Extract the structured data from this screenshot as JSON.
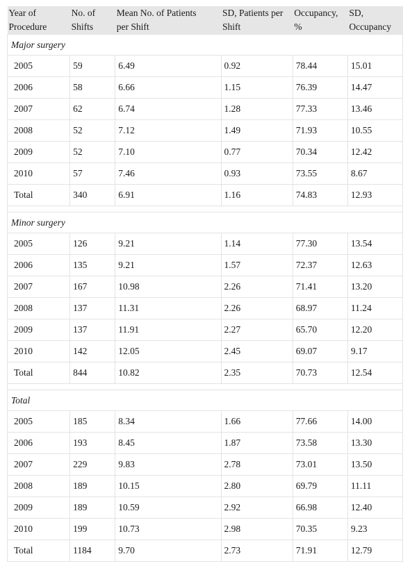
{
  "columns": [
    [
      "Year of",
      "Procedure"
    ],
    [
      "No. of",
      "Shifts"
    ],
    [
      "Mean No. of Patients",
      "per Shift"
    ],
    [
      "SD, Patients per",
      "Shift"
    ],
    [
      "Occupancy,",
      "%"
    ],
    [
      "SD,",
      "Occupancy"
    ]
  ],
  "sections": [
    {
      "title": "Major surgery",
      "rows": [
        [
          "2005",
          "59",
          "6.49",
          "0.92",
          "78.44",
          "15.01"
        ],
        [
          "2006",
          "58",
          "6.66",
          "1.15",
          "76.39",
          "14.47"
        ],
        [
          "2007",
          "62",
          "6.74",
          "1.28",
          "77.33",
          "13.46"
        ],
        [
          "2008",
          "52",
          "7.12",
          "1.49",
          "71.93",
          "10.55"
        ],
        [
          "2009",
          "52",
          "7.10",
          "0.77",
          "70.34",
          "12.42"
        ],
        [
          "2010",
          "57",
          "7.46",
          "0.93",
          "73.55",
          "8.67"
        ],
        [
          "Total",
          "340",
          "6.91",
          "1.16",
          "74.83",
          "12.93"
        ]
      ]
    },
    {
      "title": "Minor surgery",
      "rows": [
        [
          "2005",
          "126",
          "9.21",
          "1.14",
          "77.30",
          "13.54"
        ],
        [
          "2006",
          "135",
          "9.21",
          "1.57",
          "72.37",
          "12.63"
        ],
        [
          "2007",
          "167",
          "10.98",
          "2.26",
          "71.41",
          "13.20"
        ],
        [
          "2008",
          "137",
          "11.31",
          "2.26",
          "68.97",
          "11.24"
        ],
        [
          "2009",
          "137",
          "11.91",
          "2.27",
          "65.70",
          "12.20"
        ],
        [
          "2010",
          "142",
          "12.05",
          "2.45",
          "69.07",
          "9.17"
        ],
        [
          "Total",
          "844",
          "10.82",
          "2.35",
          "70.73",
          "12.54"
        ]
      ]
    },
    {
      "title": "Total",
      "rows": [
        [
          "2005",
          "185",
          "8.34",
          "1.66",
          "77.66",
          "14.00"
        ],
        [
          "2006",
          "193",
          "8.45",
          "1.87",
          "73.58",
          "13.30"
        ],
        [
          "2007",
          "229",
          "9.83",
          "2.78",
          "73.01",
          "13.50"
        ],
        [
          "2008",
          "189",
          "10.15",
          "2.80",
          "69.79",
          "11.11"
        ],
        [
          "2009",
          "189",
          "10.59",
          "2.92",
          "66.98",
          "12.40"
        ],
        [
          "2010",
          "199",
          "10.73",
          "2.98",
          "70.35",
          "9.23"
        ],
        [
          "Total",
          "1184",
          "9.70",
          "2.73",
          "71.91",
          "12.79"
        ]
      ]
    }
  ]
}
